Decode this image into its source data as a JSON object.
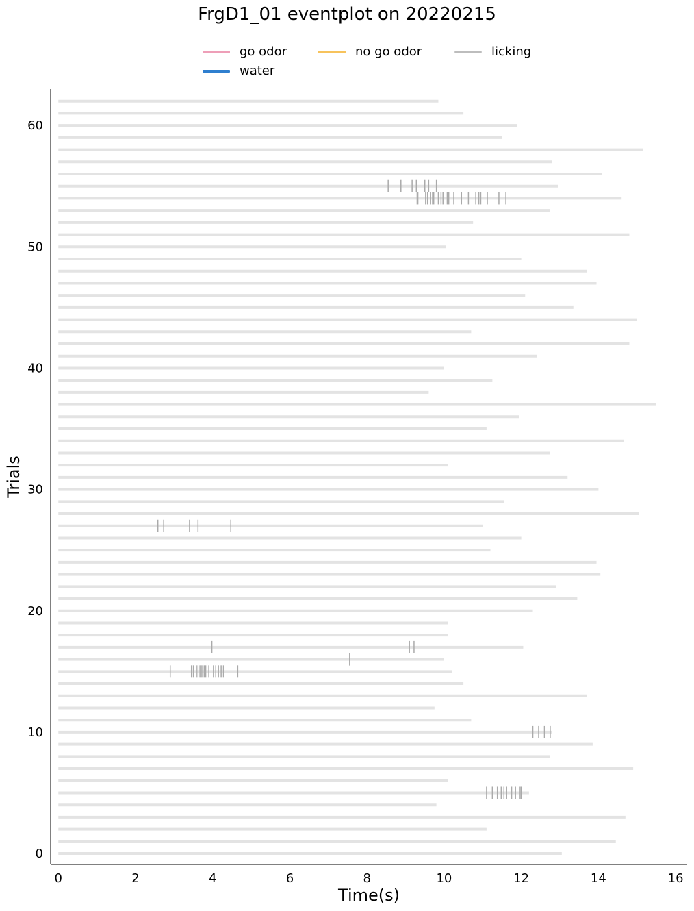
{
  "chart_data": {
    "type": "eventplot",
    "title": "FrgD1_01 eventplot on 20220215",
    "xlabel": "Time(s)",
    "ylabel": "Trials",
    "xlim": [
      -0.2,
      16.3
    ],
    "ylim": [
      -0.9,
      63.0
    ],
    "xticks": [
      0,
      2,
      4,
      6,
      8,
      10,
      12,
      14,
      16
    ],
    "yticks": [
      0,
      10,
      20,
      30,
      40,
      50,
      60
    ],
    "legend_position": "top-center",
    "legend": [
      {
        "name": "go odor",
        "color": "#ee9fb8"
      },
      {
        "name": "water",
        "color": "#2f7fcf"
      },
      {
        "name": "no go odor",
        "color": "#f7c35c"
      },
      {
        "name": "licking",
        "color": "#bdbdbd"
      }
    ],
    "trial_bar_color": "#e3e3e3",
    "lick_color": "#aaaaaa",
    "trial_durations": [
      13.05,
      14.45,
      11.1,
      14.7,
      9.8,
      12.2,
      10.1,
      14.9,
      12.75,
      13.85,
      12.8,
      10.7,
      9.75,
      13.7,
      10.5,
      10.2,
      10.0,
      12.05,
      10.1,
      10.1,
      12.3,
      13.45,
      12.9,
      14.05,
      13.95,
      11.2,
      12.0,
      11.0,
      15.05,
      11.55,
      14.0,
      13.2,
      10.1,
      12.75,
      14.65,
      11.1,
      11.95,
      15.5,
      9.6,
      11.25,
      10.0,
      12.4,
      14.8,
      10.7,
      15.0,
      13.35,
      12.1,
      13.95,
      13.7,
      12.0,
      10.05,
      14.8,
      10.75,
      12.75,
      14.6,
      12.95,
      14.1,
      12.8,
      15.15,
      11.5,
      11.9,
      10.5,
      9.85
    ],
    "licks": [
      {
        "trial": 5,
        "times": [
          11.1,
          11.25,
          11.38,
          11.48,
          11.55,
          11.62,
          11.75,
          11.85,
          11.97,
          12.0
        ]
      },
      {
        "trial": 10,
        "times": [
          12.3,
          12.45,
          12.6,
          12.75
        ]
      },
      {
        "trial": 15,
        "times": [
          2.9,
          3.45,
          3.5,
          3.58,
          3.62,
          3.67,
          3.72,
          3.78,
          3.82,
          3.9,
          4.02,
          4.08,
          4.15,
          4.22,
          4.28,
          4.65
        ]
      },
      {
        "trial": 16,
        "times": [
          7.55
        ]
      },
      {
        "trial": 17,
        "times": [
          3.98,
          9.1,
          9.22
        ]
      },
      {
        "trial": 27,
        "times": [
          2.58,
          2.73,
          3.4,
          3.62,
          4.47
        ]
      },
      {
        "trial": 54,
        "times": [
          9.3,
          9.32,
          9.52,
          9.57,
          9.65,
          9.7,
          9.73,
          9.85,
          9.92,
          9.97,
          10.08,
          10.12,
          10.25,
          10.45,
          10.63,
          10.82,
          10.9,
          10.95,
          11.12,
          11.42,
          11.6
        ]
      },
      {
        "trial": 55,
        "times": [
          8.55,
          8.88,
          9.17,
          9.28,
          9.5,
          9.6,
          9.8
        ]
      }
    ]
  }
}
